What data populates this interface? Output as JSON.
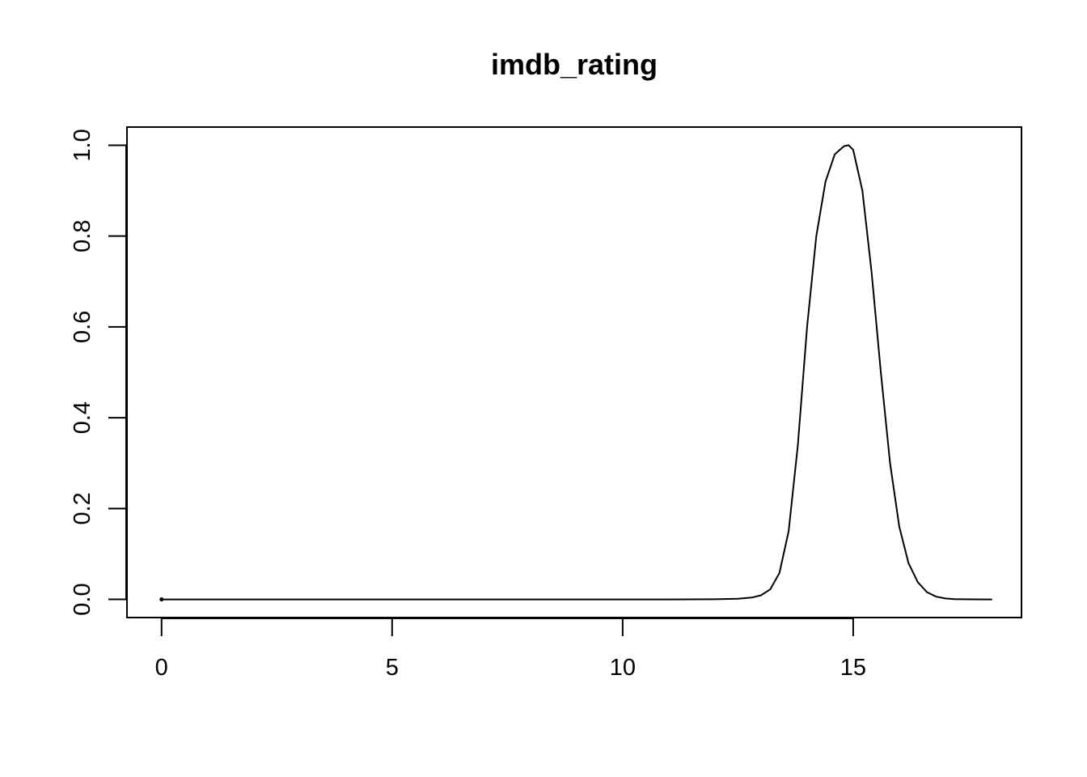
{
  "chart_data": {
    "type": "line",
    "title": "imdb_rating",
    "xlabel": "",
    "ylabel": "",
    "xlim": [
      -0.75,
      18.65
    ],
    "ylim": [
      -0.04,
      1.04
    ],
    "x_ticks": [
      0,
      5,
      10,
      15
    ],
    "x_tick_labels": [
      "0",
      "5",
      "10",
      "15"
    ],
    "y_ticks": [
      0.0,
      0.2,
      0.4,
      0.6,
      0.8,
      1.0
    ],
    "y_tick_labels": [
      "0.0",
      "0.2",
      "0.4",
      "0.6",
      "0.8",
      "1.0"
    ],
    "grid": false,
    "legend": "none",
    "line_color": "#000000",
    "series": [
      {
        "x": [
          0,
          1,
          2,
          3,
          4,
          5,
          6,
          7,
          8,
          9,
          10,
          11,
          12,
          12.5,
          12.8,
          13.0,
          13.2,
          13.4,
          13.6,
          13.8,
          14.0,
          14.2,
          14.4,
          14.6,
          14.8,
          14.9,
          15.0,
          15.2,
          15.4,
          15.6,
          15.8,
          16.0,
          16.2,
          16.4,
          16.6,
          16.8,
          17.0,
          17.2,
          17.4,
          17.6,
          18.0
        ],
        "values": [
          0,
          0,
          0,
          0,
          0,
          0,
          0,
          0,
          0,
          0,
          0,
          0,
          0.0003,
          0.0013,
          0.004,
          0.009,
          0.022,
          0.058,
          0.15,
          0.34,
          0.6,
          0.8,
          0.92,
          0.98,
          0.998,
          1.0,
          0.99,
          0.9,
          0.72,
          0.5,
          0.3,
          0.16,
          0.08,
          0.038,
          0.016,
          0.006,
          0.002,
          0.0007,
          0.0002,
          0.0001,
          0
        ]
      }
    ]
  }
}
